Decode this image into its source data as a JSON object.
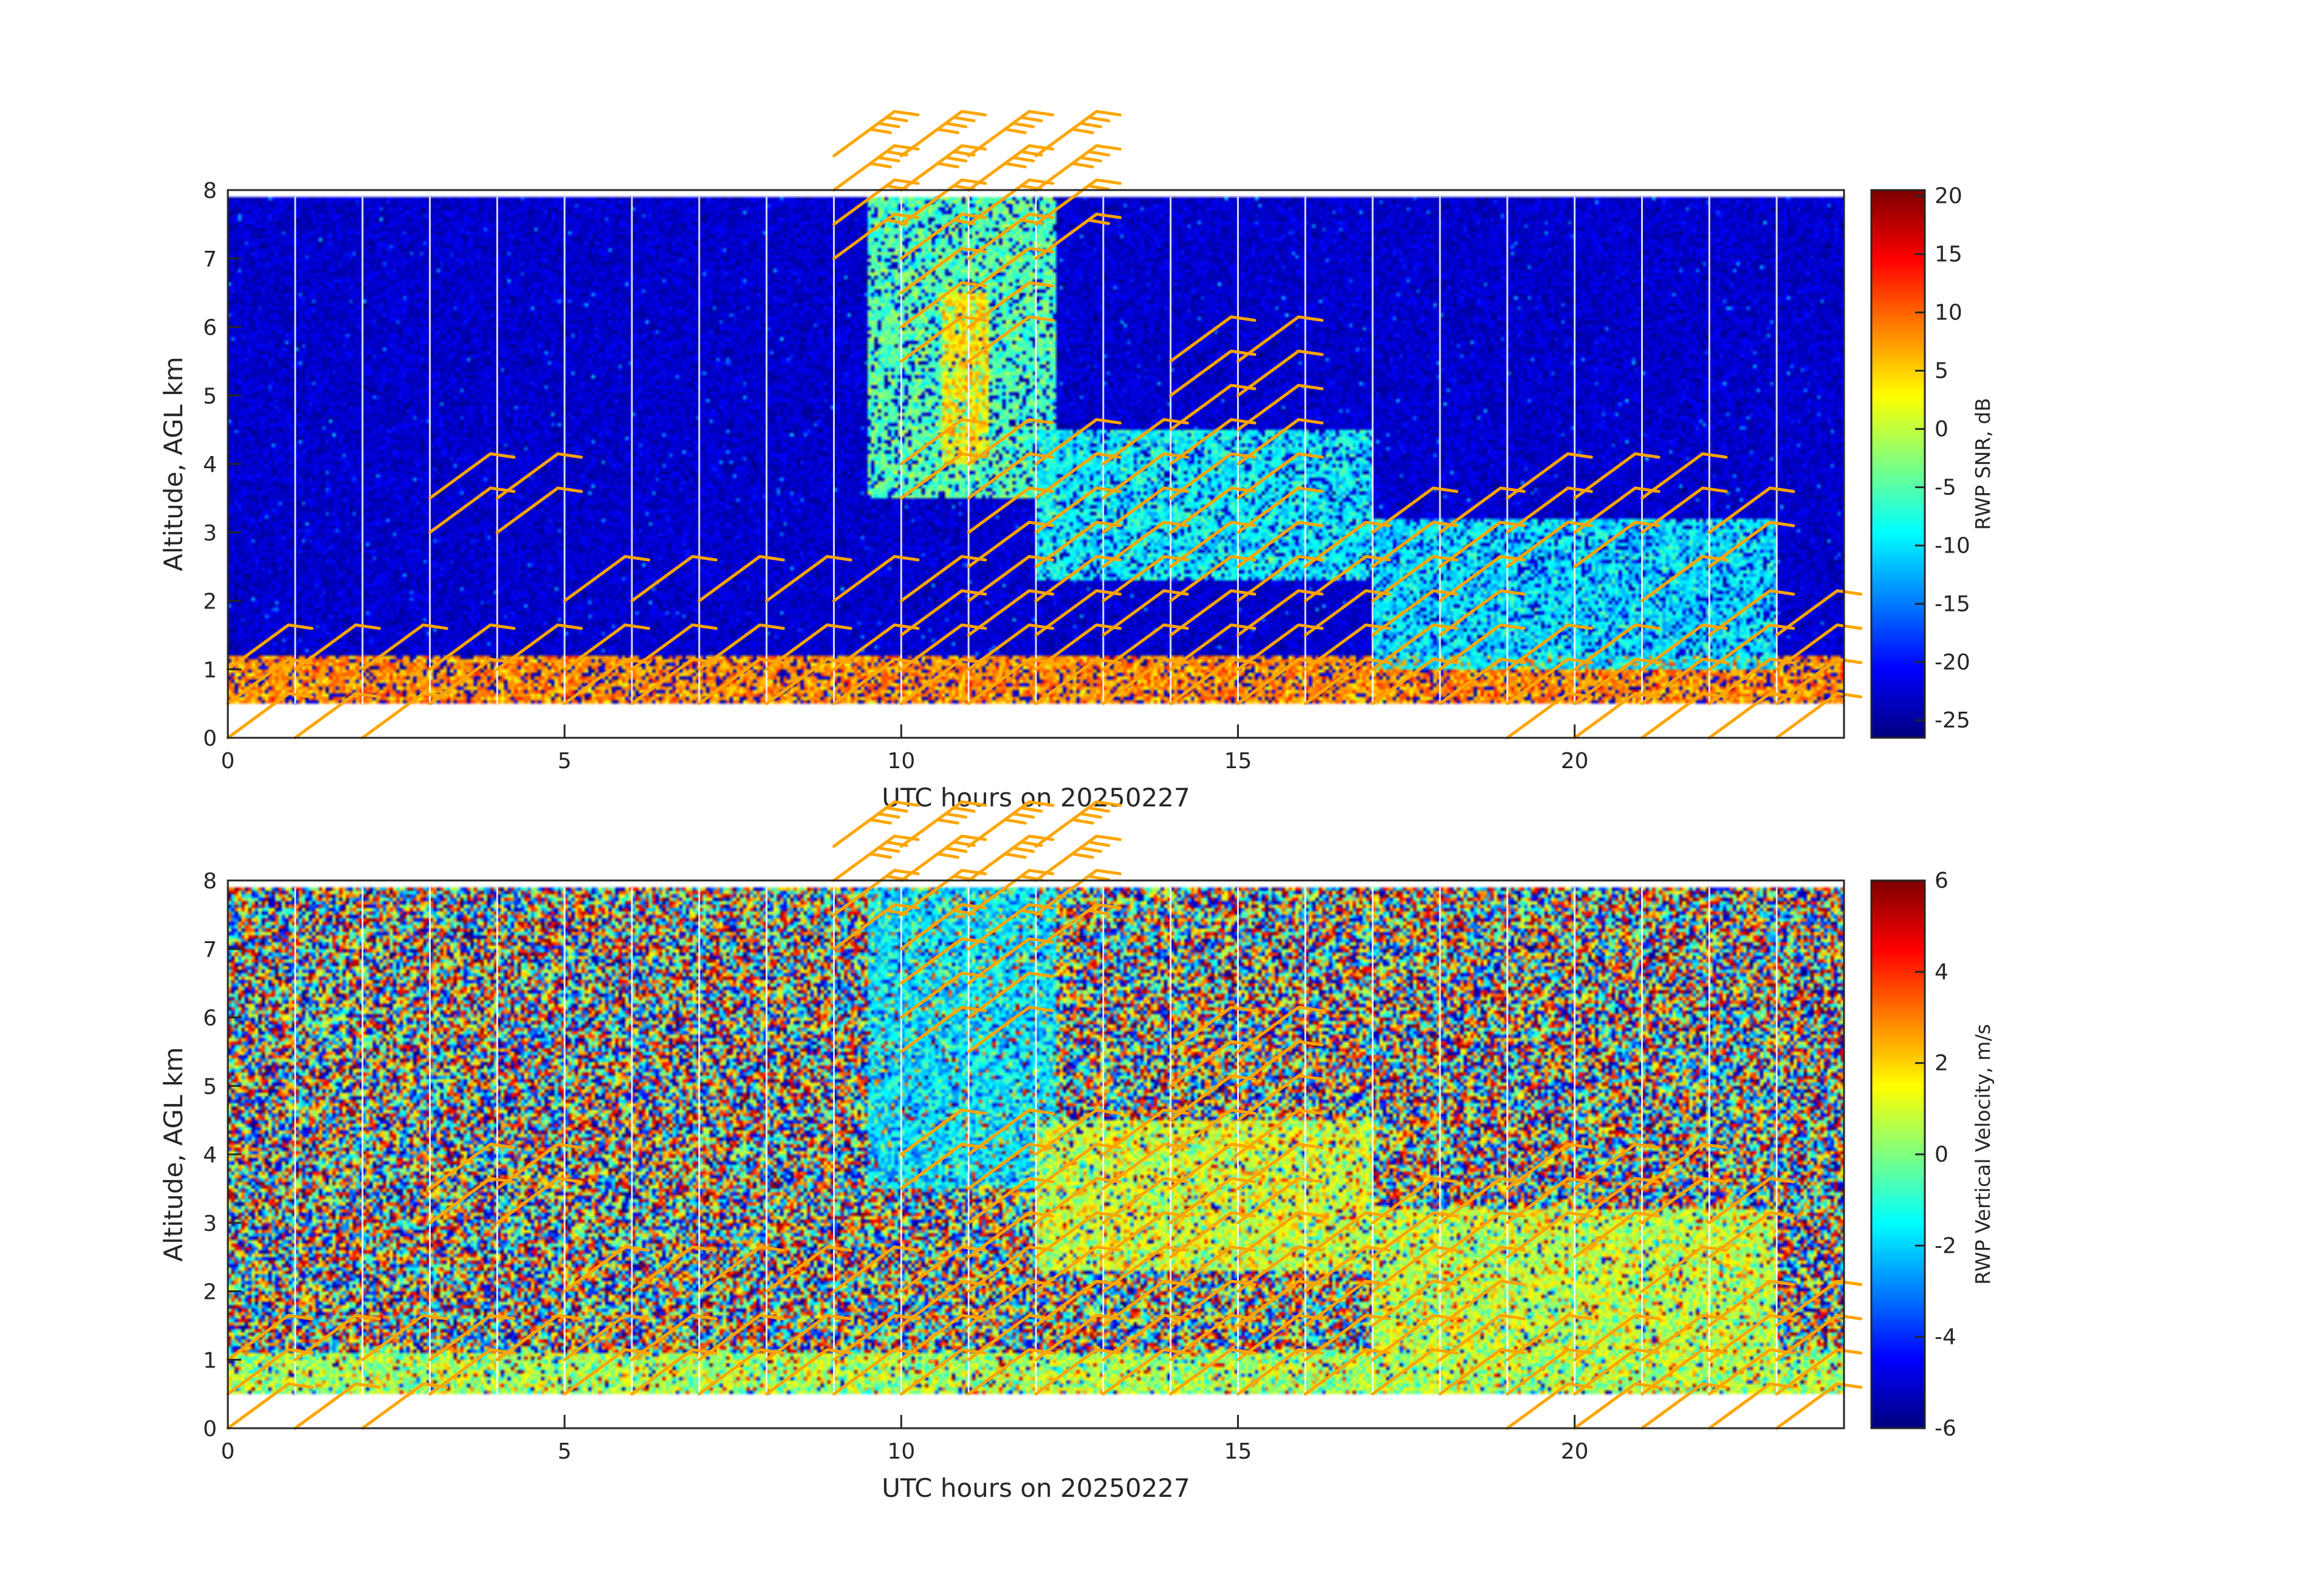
{
  "chart_data": [
    {
      "type": "heatmap",
      "title": "",
      "xlabel": "UTC hours on 20250227",
      "ylabel": "Altitude, AGL km",
      "xlim": [
        0,
        24
      ],
      "ylim": [
        0,
        8
      ],
      "x_ticks": [
        0,
        5,
        10,
        15,
        20
      ],
      "y_ticks": [
        0,
        1,
        2,
        3,
        4,
        5,
        6,
        7,
        8
      ],
      "data_range_km": [
        0.5,
        7.9
      ],
      "colorbar": {
        "label": "RWP SNR, dB",
        "range": [
          -26.5,
          20.5
        ],
        "ticks": [
          20,
          15,
          10,
          5,
          0,
          -5,
          -10,
          -15,
          -20,
          -25
        ],
        "colormap": "jet"
      },
      "background_value": -23,
      "features": [
        {
          "name": "boundary layer",
          "time_range": [
            0,
            24
          ],
          "alt_range": [
            0.5,
            1.2
          ],
          "value": 8
        },
        {
          "name": "upper plume",
          "time_range": [
            9.5,
            12.3
          ],
          "alt_range": [
            3.5,
            7.9
          ],
          "value": -5
        },
        {
          "name": "plume core",
          "time_range": [
            10.6,
            11.3
          ],
          "alt_range": [
            4.0,
            6.5
          ],
          "value": 4
        },
        {
          "name": "mid-level layer",
          "time_range": [
            12,
            17
          ],
          "alt_range": [
            2.3,
            4.5
          ],
          "value": -9
        },
        {
          "name": "afternoon layer",
          "time_range": [
            17,
            23
          ],
          "alt_range": [
            1.0,
            3.2
          ],
          "value": -10
        }
      ]
    },
    {
      "type": "heatmap",
      "title": "",
      "xlabel": "UTC hours on 20250227",
      "ylabel": "Altitude, AGL km",
      "xlim": [
        0,
        24
      ],
      "ylim": [
        0,
        8
      ],
      "x_ticks": [
        0,
        5,
        10,
        15,
        20
      ],
      "y_ticks": [
        0,
        1,
        2,
        3,
        4,
        5,
        6,
        7,
        8
      ],
      "data_range_km": [
        0.5,
        7.9
      ],
      "colorbar": {
        "label": "RWP Vertical Velocity, m/s",
        "range": [
          -6,
          6
        ],
        "ticks": [
          6,
          4,
          2,
          0,
          -2,
          -4,
          -6
        ],
        "colormap": "jet"
      },
      "background": "noise between -6 and 6 m/s",
      "features": [
        {
          "name": "boundary layer",
          "time_range": [
            0,
            24
          ],
          "alt_range": [
            0.5,
            1.1
          ],
          "value": 0.5
        },
        {
          "name": "plume fall speed",
          "time_range": [
            9.5,
            12.3
          ],
          "alt_range": [
            3.5,
            7.9
          ],
          "value": -1.8
        },
        {
          "name": "mid-level layer",
          "time_range": [
            12,
            17
          ],
          "alt_range": [
            2.3,
            4.5
          ],
          "value": 1.0
        },
        {
          "name": "afternoon layer",
          "time_range": [
            17,
            23
          ],
          "alt_range": [
            1.0,
            3.2
          ],
          "value": 0.8
        }
      ]
    }
  ],
  "wind_barbs": {
    "color": "#FFA500",
    "columns": [
      {
        "t": 0,
        "alts": [
          0,
          0.5,
          1.0
        ]
      },
      {
        "t": 1,
        "alts": [
          0,
          1.0
        ]
      },
      {
        "t": 2,
        "alts": [
          0,
          1.0
        ]
      },
      {
        "t": 3,
        "alts": [
          0.5,
          1.0,
          3.0,
          3.5
        ]
      },
      {
        "t": 4,
        "alts": [
          1.0,
          3.0,
          3.5
        ]
      },
      {
        "t": 5,
        "alts": [
          0.5,
          1.0,
          2.0
        ]
      },
      {
        "t": 6,
        "alts": [
          0.5,
          1.0,
          2.0
        ]
      },
      {
        "t": 7,
        "alts": [
          0.5,
          1.0,
          2.0
        ]
      },
      {
        "t": 8,
        "alts": [
          0.5,
          1.0,
          2.0
        ]
      },
      {
        "t": 9,
        "alts": [
          0.5,
          1.0,
          2.0,
          7.0,
          7.5,
          8.0,
          8.5
        ]
      },
      {
        "t": 10,
        "alts": [
          0.5,
          1.0,
          1.5,
          2.0,
          3.5,
          4.0,
          5.5,
          6.0,
          6.5,
          7.0,
          7.5,
          8.0,
          8.5
        ]
      },
      {
        "t": 11,
        "alts": [
          0.5,
          1.0,
          1.5,
          2.0,
          2.5,
          3.0,
          3.5,
          4.0,
          5.5,
          6.0,
          6.5,
          7.0,
          7.5,
          8.0,
          8.5
        ]
      },
      {
        "t": 12,
        "alts": [
          0.5,
          1.0,
          1.5,
          2.0,
          2.5,
          3.0,
          3.5,
          4.0,
          7.0,
          7.5,
          8.0,
          8.5
        ]
      },
      {
        "t": 13,
        "alts": [
          0.5,
          1.0,
          1.5,
          2.0,
          2.5,
          3.0,
          3.5,
          4.0
        ]
      },
      {
        "t": 14,
        "alts": [
          0.5,
          1.0,
          1.5,
          2.0,
          2.5,
          3.0,
          3.5,
          4.0,
          4.5,
          5.0,
          5.5
        ]
      },
      {
        "t": 15,
        "alts": [
          0.5,
          1.0,
          1.5,
          2.0,
          2.5,
          3.0,
          3.5,
          4.0,
          4.5,
          5.0,
          5.5
        ]
      },
      {
        "t": 16,
        "alts": [
          0.5,
          1.0,
          1.5,
          2.0,
          2.5
        ]
      },
      {
        "t": 17,
        "alts": [
          0.5,
          1.0,
          1.5,
          2.0,
          2.5,
          3.0
        ]
      },
      {
        "t": 18,
        "alts": [
          0.5,
          1.0,
          1.5,
          2.0,
          2.5,
          3.0
        ]
      },
      {
        "t": 19,
        "alts": [
          0,
          0.5,
          1.0,
          2.5,
          3.0,
          3.5
        ]
      },
      {
        "t": 20,
        "alts": [
          0,
          0.5,
          1.0,
          2.5,
          3.0,
          3.5
        ]
      },
      {
        "t": 21,
        "alts": [
          0,
          0.5,
          1.0,
          2.0,
          3.0,
          3.5
        ]
      },
      {
        "t": 22,
        "alts": [
          0,
          0.5,
          1.0,
          1.5,
          2.5,
          3.0
        ]
      },
      {
        "t": 23,
        "alts": [
          0,
          0.5,
          1.0,
          1.5
        ]
      }
    ]
  }
}
